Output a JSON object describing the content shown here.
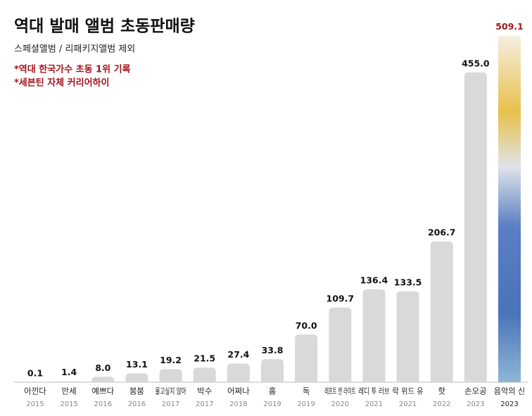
{
  "chart_data": {
    "type": "bar",
    "title": "역대 발매 앨범 초동판매량",
    "subtitle": "스페셜앨범 / 리패키지앨범 제외",
    "annotations": [
      "*역대 한국가수 초동 1위 기록",
      "*세븐틴 자체 커리어하이"
    ],
    "categories": [
      "아낀다",
      "만세",
      "예쁘다",
      "붐붐",
      "울고싶지 않아",
      "박수",
      "어쩌나",
      "홈",
      "독",
      "레프트 앤 라이트",
      "레디 투 러브",
      "락 위드 유",
      "핫",
      "손오공",
      "음악의 신"
    ],
    "category_years": [
      "2015",
      "2015",
      "2016",
      "2016",
      "2017",
      "2017",
      "2018",
      "2019",
      "2019",
      "2020",
      "2021",
      "2021",
      "2022",
      "2023",
      "2023"
    ],
    "values": [
      0.1,
      1.4,
      8.0,
      13.1,
      19.2,
      21.5,
      27.4,
      33.8,
      70.0,
      109.7,
      136.4,
      133.5,
      206.7,
      455.0,
      509.1
    ],
    "value_labels": [
      "0.1",
      "1.4",
      "8.0",
      "13.1",
      "19.2",
      "21.5",
      "27.4",
      "33.8",
      "70.0",
      "109.7",
      "136.4",
      "133.5",
      "206.7",
      "455.0",
      "509.1"
    ],
    "color": "#d9d9d9",
    "highlight_color": "#9b1b22",
    "ylim": [
      0,
      520
    ]
  }
}
